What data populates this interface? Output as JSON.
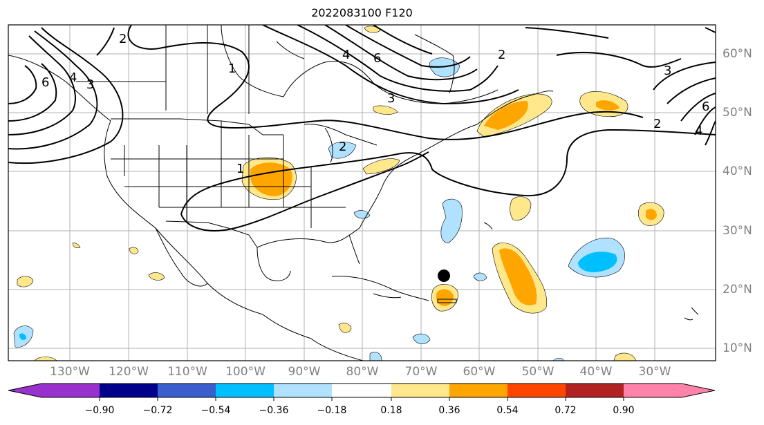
{
  "title": "2022083100 F120",
  "lon_labels": [
    "130°W",
    "120°W",
    "110°W",
    "100°W",
    "90°W",
    "80°W",
    "70°W",
    "60°W",
    "50°W",
    "40°W",
    "30°W"
  ],
  "lat_labels": [
    "60°N",
    "50°N",
    "40°N",
    "30°N",
    "20°N",
    "10°N"
  ],
  "contour_labels": [
    "2",
    "3",
    "4",
    "6",
    "2",
    "1",
    "2",
    "3",
    "4",
    "6",
    "2",
    "3",
    "4",
    "6",
    "1"
  ],
  "colorbar": {
    "ticks": [
      "−0.90",
      "−0.72",
      "−0.54",
      "−0.36",
      "−0.18",
      "0.18",
      "0.36",
      "0.54",
      "0.72",
      "0.90"
    ],
    "colors": [
      "#9932cc",
      "#00008b",
      "#3a5fcd",
      "#00bfff",
      "#b0e2ff",
      "#ffffff",
      "#ffe78c",
      "#ffa500",
      "#ff4500",
      "#b22222",
      "#ff82ab"
    ]
  },
  "marker": {
    "label": "storm-position",
    "lon": -66,
    "lat": 22.5
  }
}
